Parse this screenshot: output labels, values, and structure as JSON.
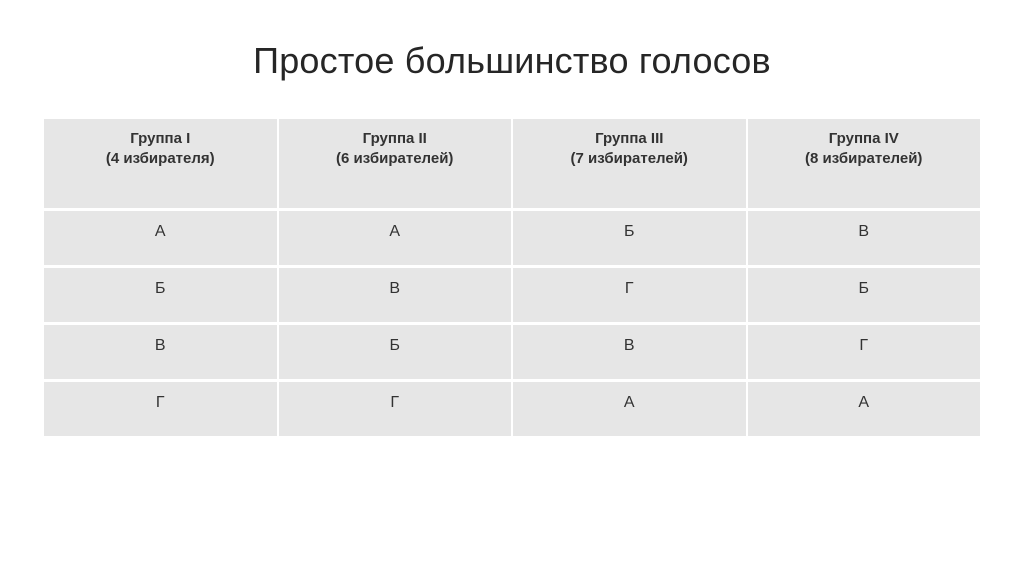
{
  "title": "Простое большинство голосов",
  "table": {
    "background_color": "#ffffff",
    "cell_color": "#e6e6e6",
    "text_color": "#333333",
    "title_fontsize": 36,
    "header_fontsize": 15,
    "cell_fontsize": 16,
    "columns": [
      {
        "line1": "Группа I",
        "line2": "(4 избирателя)"
      },
      {
        "line1": "Группа II",
        "line2": "(6 избирателей)"
      },
      {
        "line1": "Группа III",
        "line2": "(7 избирателей)"
      },
      {
        "line1": "Группа IV",
        "line2": "(8 избирателей)"
      }
    ],
    "rows": [
      [
        "А",
        "А",
        "Б",
        "В"
      ],
      [
        "Б",
        "В",
        "Г",
        "Б"
      ],
      [
        "В",
        "Б",
        "В",
        "Г"
      ],
      [
        "Г",
        "Г",
        "А",
        "А"
      ]
    ]
  }
}
